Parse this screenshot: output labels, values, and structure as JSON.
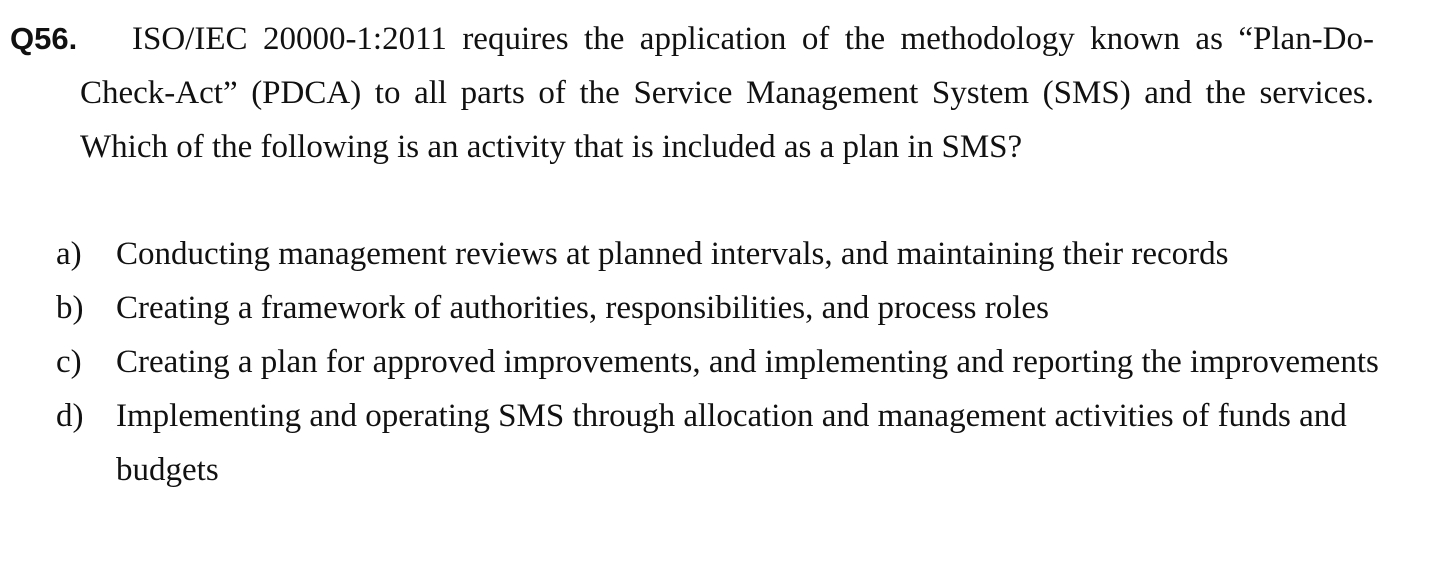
{
  "question": {
    "number": "Q56.",
    "text": "ISO/IEC 20000-1:2011 requires the application of the methodology known as “Plan-Do-Check-Act” (PDCA) to all parts of the Service Management System (SMS) and the services. Which of the following is an activity that is included as a plan in SMS?"
  },
  "options": [
    {
      "letter": "a)",
      "text": "Conducting management reviews at planned intervals, and maintaining their records"
    },
    {
      "letter": "b)",
      "text": "Creating a framework of authorities, responsibilities, and process roles"
    },
    {
      "letter": "c)",
      "text": "Creating a plan for approved improvements, and implementing and reporting the improvements"
    },
    {
      "letter": "d)",
      "text": "Implementing and operating SMS through allocation and management activities of funds and budgets"
    }
  ]
}
